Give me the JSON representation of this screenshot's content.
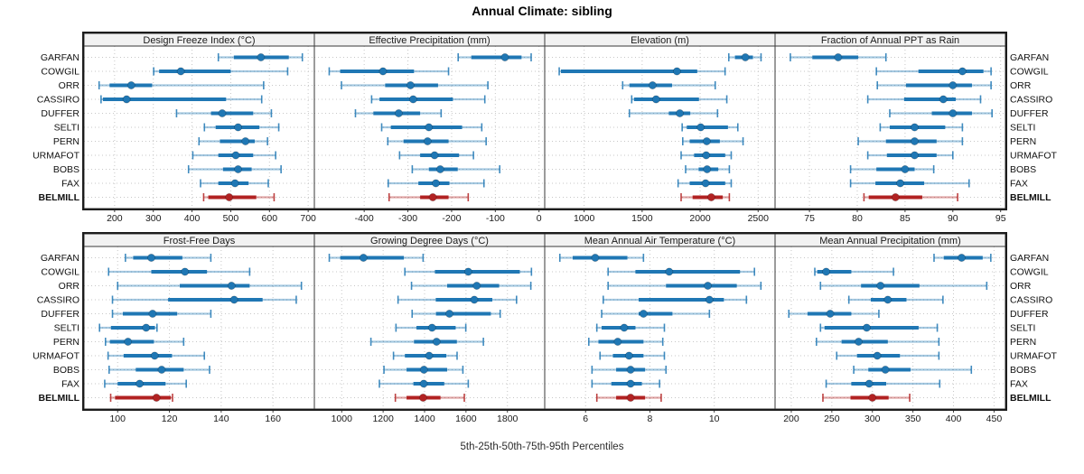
{
  "title": "Annual Climate: sibling",
  "caption": "5th-25th-50th-75th-95th Percentiles",
  "colors": {
    "series_blue": "#1f77b4",
    "highlight_red": "#b22222",
    "grid": "#c7c7c7",
    "panel_border": "#3a3a3a",
    "outer_border": "#1c1c1c",
    "header_bg": "#f2f2f2",
    "tick_text": "#1a1a1a",
    "label_text": "#111111"
  },
  "stations": [
    "GARFAN",
    "COWGIL",
    "ORR",
    "CASSIRO",
    "DUFFER",
    "SELTI",
    "PERN",
    "URMAFOT",
    "BOBS",
    "FAX",
    "BELMILL"
  ],
  "highlight_station": "BELMILL",
  "chart_data": {
    "type": "scatter",
    "style": "horizontal percentile whisker plot (dot = median, thick bar = 25th-75th, thin capped line = 5th-95th)",
    "percentiles": [
      5,
      25,
      50,
      75,
      95
    ],
    "categories": [
      "GARFAN",
      "COWGIL",
      "ORR",
      "CASSIRO",
      "DUFFER",
      "SELTI",
      "PERN",
      "URMAFOT",
      "BOBS",
      "FAX",
      "BELMILL"
    ],
    "legend": "none",
    "grid": "dotted",
    "panels": [
      {
        "slug": "design-freeze-index",
        "title": "Design Freeze Index (°C)",
        "row": 0,
        "col": 0,
        "xlim": [
          121,
          716
        ],
        "ticks": [
          200,
          300,
          400,
          500,
          600,
          700
        ],
        "values": [
          [
            468,
            508,
            578,
            650,
            685
          ],
          [
            301,
            315,
            371,
            500,
            647
          ],
          [
            160,
            187,
            243,
            297,
            585
          ],
          [
            165,
            170,
            231,
            488,
            580
          ],
          [
            360,
            449,
            478,
            558,
            605
          ],
          [
            432,
            461,
            519,
            574,
            624
          ],
          [
            418,
            472,
            538,
            562,
            595
          ],
          [
            402,
            468,
            513,
            558,
            616
          ],
          [
            391,
            480,
            519,
            554,
            630
          ],
          [
            422,
            468,
            511,
            546,
            597
          ],
          [
            430,
            442,
            496,
            566,
            612
          ]
        ]
      },
      {
        "slug": "effective-precipitation",
        "title": "Effective Precipitation (mm)",
        "row": 0,
        "col": 1,
        "xlim": [
          -514,
          13
        ],
        "ticks": [
          -400,
          -300,
          -200,
          -100,
          0
        ],
        "values": [
          [
            -185,
            -155,
            -78,
            -40,
            -18
          ],
          [
            -480,
            -455,
            -357,
            -286,
            -207
          ],
          [
            -452,
            -352,
            -294,
            -231,
            -117
          ],
          [
            -383,
            -365,
            -288,
            -197,
            -124
          ],
          [
            -420,
            -379,
            -321,
            -272,
            -224
          ],
          [
            -360,
            -339,
            -252,
            -176,
            -131
          ],
          [
            -346,
            -310,
            -255,
            -207,
            -121
          ],
          [
            -319,
            -272,
            -239,
            -183,
            -150
          ],
          [
            -290,
            -252,
            -226,
            -186,
            -90
          ],
          [
            -345,
            -276,
            -236,
            -205,
            -126
          ],
          [
            -343,
            -272,
            -243,
            -207,
            -162
          ]
        ]
      },
      {
        "slug": "elevation",
        "title": "Elevation (m)",
        "row": 0,
        "col": 2,
        "xlim": [
          660,
          2646
        ],
        "ticks": [
          1000,
          1500,
          2000,
          2500
        ],
        "values": [
          [
            2247,
            2300,
            2390,
            2455,
            2525
          ],
          [
            785,
            800,
            1800,
            1975,
            2215
          ],
          [
            1332,
            1390,
            1590,
            1758,
            2130
          ],
          [
            1410,
            1430,
            1620,
            1990,
            2230
          ],
          [
            1390,
            1730,
            1825,
            1915,
            2150
          ],
          [
            1845,
            1885,
            2005,
            2240,
            2325
          ],
          [
            1850,
            1910,
            2057,
            2170,
            2370
          ],
          [
            1836,
            1948,
            2052,
            2216,
            2268
          ],
          [
            1875,
            1987,
            2060,
            2156,
            2252
          ],
          [
            1810,
            1910,
            2047,
            2216,
            2268
          ],
          [
            1836,
            1935,
            2096,
            2195,
            2252
          ]
        ]
      },
      {
        "slug": "fraction-ppt-as-rain",
        "title": "Fraction of Annual PPT as Rain",
        "row": 0,
        "col": 3,
        "xlim": [
          71.4,
          95.5
        ],
        "ticks": [
          75,
          80,
          85,
          90,
          95
        ],
        "values": [
          [
            73.0,
            75.3,
            78.0,
            80.1,
            83.0
          ],
          [
            82.0,
            86.4,
            91.0,
            93.2,
            94.0
          ],
          [
            82.1,
            85.1,
            90.0,
            92.0,
            94.0
          ],
          [
            81.1,
            84.9,
            89.0,
            90.3,
            92.9
          ],
          [
            83.4,
            87.8,
            90.0,
            92.0,
            94.1
          ],
          [
            82.4,
            83.4,
            86.0,
            89.2,
            91.0
          ],
          [
            80.1,
            83.0,
            86.0,
            88.3,
            91.0
          ],
          [
            81.1,
            83.1,
            86.0,
            88.3,
            90.0
          ],
          [
            79.3,
            82.0,
            85.0,
            86.0,
            88.0
          ],
          [
            79.3,
            81.9,
            84.5,
            87.0,
            91.7
          ],
          [
            80.7,
            81.2,
            84.0,
            86.8,
            90.5
          ]
        ]
      },
      {
        "slug": "frost-free-days",
        "title": "Frost-Free Days",
        "row": 1,
        "col": 0,
        "xlim": [
          87,
          176
        ],
        "ticks": [
          100,
          120,
          140,
          160
        ],
        "values": [
          [
            103,
            106,
            113,
            125,
            136
          ],
          [
            96.5,
            113,
            126,
            134.5,
            151
          ],
          [
            100,
            124,
            144,
            151,
            171
          ],
          [
            98,
            119.5,
            145,
            156,
            169
          ],
          [
            98,
            102,
            113.5,
            123,
            136
          ],
          [
            93,
            97.4,
            111,
            114.4,
            115.2
          ],
          [
            95.3,
            97,
            104,
            114,
            125.5
          ],
          [
            96.3,
            102.3,
            114.3,
            121,
            133.5
          ],
          [
            96.7,
            107,
            117,
            125.5,
            135.5
          ],
          [
            95,
            100,
            108.5,
            118.5,
            126.5
          ],
          [
            97.3,
            99,
            115,
            120.5,
            121.2
          ]
        ]
      },
      {
        "slug": "growing-degree-days",
        "title": "Growing Degree Days (°C)",
        "row": 1,
        "col": 1,
        "xlim": [
          868,
          1980
        ],
        "ticks": [
          1000,
          1200,
          1400,
          1600,
          1800
        ],
        "values": [
          [
            940,
            993,
            1105,
            1300,
            1393
          ],
          [
            1305,
            1450,
            1611,
            1860,
            1916
          ],
          [
            1337,
            1509,
            1652,
            1760,
            1913
          ],
          [
            1272,
            1454,
            1640,
            1727,
            1844
          ],
          [
            1340,
            1455,
            1520,
            1720,
            1765
          ],
          [
            1262,
            1361,
            1436,
            1550,
            1599
          ],
          [
            1141,
            1349,
            1458,
            1556,
            1684
          ],
          [
            1250,
            1305,
            1422,
            1505,
            1557
          ],
          [
            1204,
            1313,
            1397,
            1509,
            1585
          ],
          [
            1182,
            1346,
            1396,
            1495,
            1611
          ],
          [
            1259,
            1313,
            1393,
            1477,
            1592
          ]
        ]
      },
      {
        "slug": "mean-annual-air-temperature",
        "title": "Mean Annual Air Temperature (°C)",
        "row": 1,
        "col": 2,
        "xlim": [
          4.73,
          11.89
        ],
        "ticks": [
          6,
          8,
          10
        ],
        "values": [
          [
            5.2,
            5.6,
            6.3,
            7.3,
            7.8
          ],
          [
            6.7,
            7.55,
            8.6,
            10.8,
            11.25
          ],
          [
            6.7,
            8.5,
            9.8,
            10.7,
            11.45
          ],
          [
            6.55,
            7.65,
            9.85,
            10.3,
            11.0
          ],
          [
            6.5,
            7.65,
            7.8,
            8.7,
            9.85
          ],
          [
            6.35,
            6.5,
            7.2,
            7.55,
            8.45
          ],
          [
            6.1,
            6.4,
            7.0,
            7.8,
            8.4
          ],
          [
            6.45,
            6.85,
            7.35,
            7.8,
            8.45
          ],
          [
            6.2,
            6.95,
            7.4,
            7.85,
            8.5
          ],
          [
            6.2,
            6.8,
            7.4,
            7.75,
            8.3
          ],
          [
            6.35,
            6.95,
            7.4,
            7.85,
            8.35
          ]
        ]
      },
      {
        "slug": "mean-annual-precipitation",
        "title": "Mean Annual Precipitation (mm)",
        "row": 1,
        "col": 3,
        "xlim": [
          180,
          464
        ],
        "ticks": [
          200,
          250,
          300,
          350,
          400,
          450
        ],
        "values": [
          [
            376,
            388,
            410,
            436,
            446
          ],
          [
            229,
            232,
            243,
            274,
            326
          ],
          [
            236,
            286,
            310,
            358,
            441
          ],
          [
            271,
            298,
            319,
            342,
            387
          ],
          [
            197,
            220,
            248,
            274,
            308
          ],
          [
            236,
            241,
            293,
            357,
            380
          ],
          [
            231,
            262,
            283,
            319,
            382
          ],
          [
            256,
            281,
            306,
            334,
            382
          ],
          [
            277,
            295,
            316,
            347,
            422
          ],
          [
            243,
            274,
            296,
            317,
            383
          ],
          [
            239,
            273,
            300,
            320,
            346
          ]
        ]
      }
    ]
  }
}
